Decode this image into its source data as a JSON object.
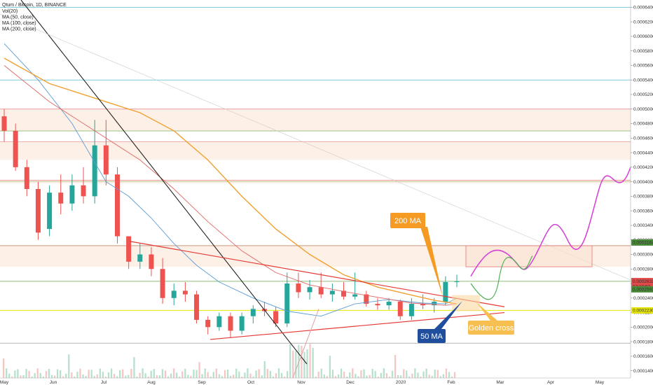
{
  "chart_data": {
    "type": "candlestick",
    "title": "Qtum / Bitcoin, 1D, BINANCE",
    "legend_lines": [
      "Vol(20)",
      "MA (50, close)",
      "MA (100, close)",
      "MA (200, close)"
    ],
    "y_ticks": [
      "0.0006400",
      "0.0006200",
      "0.0006000",
      "0.0005800",
      "0.0005600",
      "0.0005400",
      "0.0005200",
      "0.0005000",
      "0.0004800",
      "0.0004600",
      "0.0004400",
      "0.0004200",
      "0.0004000",
      "0.0003800",
      "0.0003600",
      "0.0003400",
      "0.0003200",
      "0.0003000",
      "0.0002800",
      "0.0002600",
      "0.0002400",
      "0.0002200",
      "0.0002000",
      "0.0001800",
      "0.0001600",
      "0.0001400"
    ],
    "y_range": [
      0.00013,
      0.00065
    ],
    "x_ticks": [
      "May",
      "Jun",
      "Jul",
      "Aug",
      "Sep",
      "Oct",
      "Nov",
      "Dec",
      "2020",
      "Feb",
      "Mar",
      "Apr",
      "May"
    ],
    "price_badges": [
      {
        "label": "0.0003164",
        "value": 0.0003164,
        "color": "#4a8b3a"
      },
      {
        "label": "0.0002633",
        "value": 0.0002633,
        "color": "#e04a4a"
      },
      {
        "label": "13:10:53",
        "value": 0.000256,
        "color": "#e04a4a"
      },
      {
        "label": "0.0002593",
        "value": 0.000252,
        "color": "#4a8b3a"
      },
      {
        "label": "0.0002230",
        "value": 0.000223,
        "color": "#e6e600"
      }
    ],
    "annotations": [
      {
        "label": "200 MA",
        "color": "#f59a23"
      },
      {
        "label": "50 MA",
        "color": "#1f4e9c"
      },
      {
        "label": "Golden cross",
        "color": "#f7bf4f"
      }
    ],
    "ohlc": [
      {
        "t": "2019-05-01",
        "o": 0.00049,
        "h": 0.0005,
        "l": 0.000455,
        "c": 0.00047
      },
      {
        "t": "2019-05-08",
        "o": 0.00047,
        "h": 0.00048,
        "l": 0.000415,
        "c": 0.00042
      },
      {
        "t": "2019-05-15",
        "o": 0.00042,
        "h": 0.00043,
        "l": 0.00038,
        "c": 0.00039
      },
      {
        "t": "2019-05-22",
        "o": 0.00039,
        "h": 0.0004,
        "l": 0.00032,
        "c": 0.00033
      },
      {
        "t": "2019-05-29",
        "o": 0.000335,
        "h": 0.000395,
        "l": 0.000325,
        "c": 0.000385
      },
      {
        "t": "2019-06-05",
        "o": 0.000385,
        "h": 0.00041,
        "l": 0.000355,
        "c": 0.00037
      },
      {
        "t": "2019-06-12",
        "o": 0.00037,
        "h": 0.00041,
        "l": 0.00036,
        "c": 0.000395
      },
      {
        "t": "2019-06-19",
        "o": 0.000395,
        "h": 0.00042,
        "l": 0.00037,
        "c": 0.00038
      },
      {
        "t": "2019-06-26",
        "o": 0.00038,
        "h": 0.000485,
        "l": 0.00037,
        "c": 0.00045
      },
      {
        "t": "2019-07-03",
        "o": 0.00045,
        "h": 0.000485,
        "l": 0.000395,
        "c": 0.00041
      },
      {
        "t": "2019-07-10",
        "o": 0.00041,
        "h": 0.00042,
        "l": 0.000315,
        "c": 0.000325
      },
      {
        "t": "2019-07-17",
        "o": 0.000325,
        "h": 0.00032,
        "l": 0.00028,
        "c": 0.00029
      },
      {
        "t": "2019-07-24",
        "o": 0.00029,
        "h": 0.000315,
        "l": 0.00028,
        "c": 0.0003
      },
      {
        "t": "2019-07-31",
        "o": 0.0003,
        "h": 0.00031,
        "l": 0.00027,
        "c": 0.00028
      },
      {
        "t": "2019-08-07",
        "o": 0.00028,
        "h": 0.000295,
        "l": 0.000232,
        "c": 0.00024
      },
      {
        "t": "2019-08-14",
        "o": 0.00024,
        "h": 0.00026,
        "l": 0.00023,
        "c": 0.00025
      },
      {
        "t": "2019-08-21",
        "o": 0.00025,
        "h": 0.000262,
        "l": 0.000235,
        "c": 0.000245
      },
      {
        "t": "2019-08-28",
        "o": 0.000245,
        "h": 0.00025,
        "l": 0.000205,
        "c": 0.00021
      },
      {
        "t": "2019-09-04",
        "o": 0.00021,
        "h": 0.000215,
        "l": 0.00019,
        "c": 0.0002
      },
      {
        "t": "2019-09-11",
        "o": 0.0002,
        "h": 0.00022,
        "l": 0.000195,
        "c": 0.000215
      },
      {
        "t": "2019-09-18",
        "o": 0.000215,
        "h": 0.00022,
        "l": 0.000185,
        "c": 0.000195
      },
      {
        "t": "2019-09-25",
        "o": 0.000195,
        "h": 0.00022,
        "l": 0.00019,
        "c": 0.000215
      },
      {
        "t": "2019-10-02",
        "o": 0.000215,
        "h": 0.00023,
        "l": 0.000205,
        "c": 0.000225
      },
      {
        "t": "2019-10-09",
        "o": 0.000225,
        "h": 0.000235,
        "l": 0.000215,
        "c": 0.000222
      },
      {
        "t": "2019-10-16",
        "o": 0.000222,
        "h": 0.000228,
        "l": 0.0002,
        "c": 0.000205
      },
      {
        "t": "2019-10-23",
        "o": 0.000205,
        "h": 0.000275,
        "l": 0.0002,
        "c": 0.00026
      },
      {
        "t": "2019-10-30",
        "o": 0.00026,
        "h": 0.000275,
        "l": 0.00024,
        "c": 0.000248
      },
      {
        "t": "2019-11-06",
        "o": 0.000248,
        "h": 0.000265,
        "l": 0.000238,
        "c": 0.000255
      },
      {
        "t": "2019-11-13",
        "o": 0.000255,
        "h": 0.000275,
        "l": 0.00024,
        "c": 0.000245
      },
      {
        "t": "2019-11-20",
        "o": 0.000245,
        "h": 0.00026,
        "l": 0.000235,
        "c": 0.00025
      },
      {
        "t": "2019-11-27",
        "o": 0.00025,
        "h": 0.000262,
        "l": 0.000238,
        "c": 0.000242
      },
      {
        "t": "2019-12-04",
        "o": 0.000242,
        "h": 0.000275,
        "l": 0.000238,
        "c": 0.000245
      },
      {
        "t": "2019-12-11",
        "o": 0.000245,
        "h": 0.00025,
        "l": 0.000228,
        "c": 0.000232
      },
      {
        "t": "2019-12-18",
        "o": 0.000232,
        "h": 0.00024,
        "l": 0.000224,
        "c": 0.00023
      },
      {
        "t": "2019-12-25",
        "o": 0.00023,
        "h": 0.00024,
        "l": 0.000224,
        "c": 0.000235
      },
      {
        "t": "2020-01-01",
        "o": 0.000235,
        "h": 0.000238,
        "l": 0.00021,
        "c": 0.000215
      },
      {
        "t": "2020-01-08",
        "o": 0.000215,
        "h": 0.00024,
        "l": 0.00021,
        "c": 0.000232
      },
      {
        "t": "2020-01-15",
        "o": 0.000232,
        "h": 0.000245,
        "l": 0.000225,
        "c": 0.00023
      },
      {
        "t": "2020-01-22",
        "o": 0.00023,
        "h": 0.00024,
        "l": 0.00022,
        "c": 0.000235
      },
      {
        "t": "2020-01-29",
        "o": 0.000235,
        "h": 0.00027,
        "l": 0.00023,
        "c": 0.000262
      },
      {
        "t": "2020-02-05",
        "o": 0.000262,
        "h": 0.000272,
        "l": 0.000255,
        "c": 0.000263
      }
    ],
    "ma50": [
      [
        0,
        0.00059
      ],
      [
        3,
        0.00054
      ],
      [
        6,
        0.00048
      ],
      [
        9,
        0.0004
      ],
      [
        11,
        0.00038
      ],
      [
        13,
        0.00035
      ],
      [
        15,
        0.000315
      ],
      [
        17,
        0.000285
      ],
      [
        19,
        0.000262
      ],
      [
        22,
        0.00024
      ],
      [
        25,
        0.000222
      ],
      [
        28,
        0.000215
      ],
      [
        31,
        0.000232
      ],
      [
        34,
        0.000238
      ],
      [
        37,
        0.000233
      ],
      [
        39,
        0.000232
      ],
      [
        40,
        0.00024
      ]
    ],
    "ma100": [
      [
        0,
        0.00056
      ],
      [
        4,
        0.00051
      ],
      [
        8,
        0.00047
      ],
      [
        12,
        0.00043
      ],
      [
        15,
        0.00039
      ],
      [
        18,
        0.000345
      ],
      [
        21,
        0.000305
      ],
      [
        24,
        0.000275
      ],
      [
        27,
        0.000258
      ],
      [
        30,
        0.000249
      ],
      [
        33,
        0.000241
      ],
      [
        36,
        0.000233
      ],
      [
        39,
        0.00023
      ],
      [
        40,
        0.000232
      ]
    ],
    "ma200": [
      [
        0,
        0.00057
      ],
      [
        4,
        0.000535
      ],
      [
        8,
        0.000515
      ],
      [
        12,
        0.000495
      ],
      [
        15,
        0.00047
      ],
      [
        18,
        0.00043
      ],
      [
        21,
        0.00038
      ],
      [
        24,
        0.000335
      ],
      [
        27,
        0.0003
      ],
      [
        30,
        0.000272
      ],
      [
        33,
        0.000255
      ],
      [
        36,
        0.000244
      ],
      [
        38,
        0.000237
      ],
      [
        40,
        0.000232
      ]
    ]
  }
}
